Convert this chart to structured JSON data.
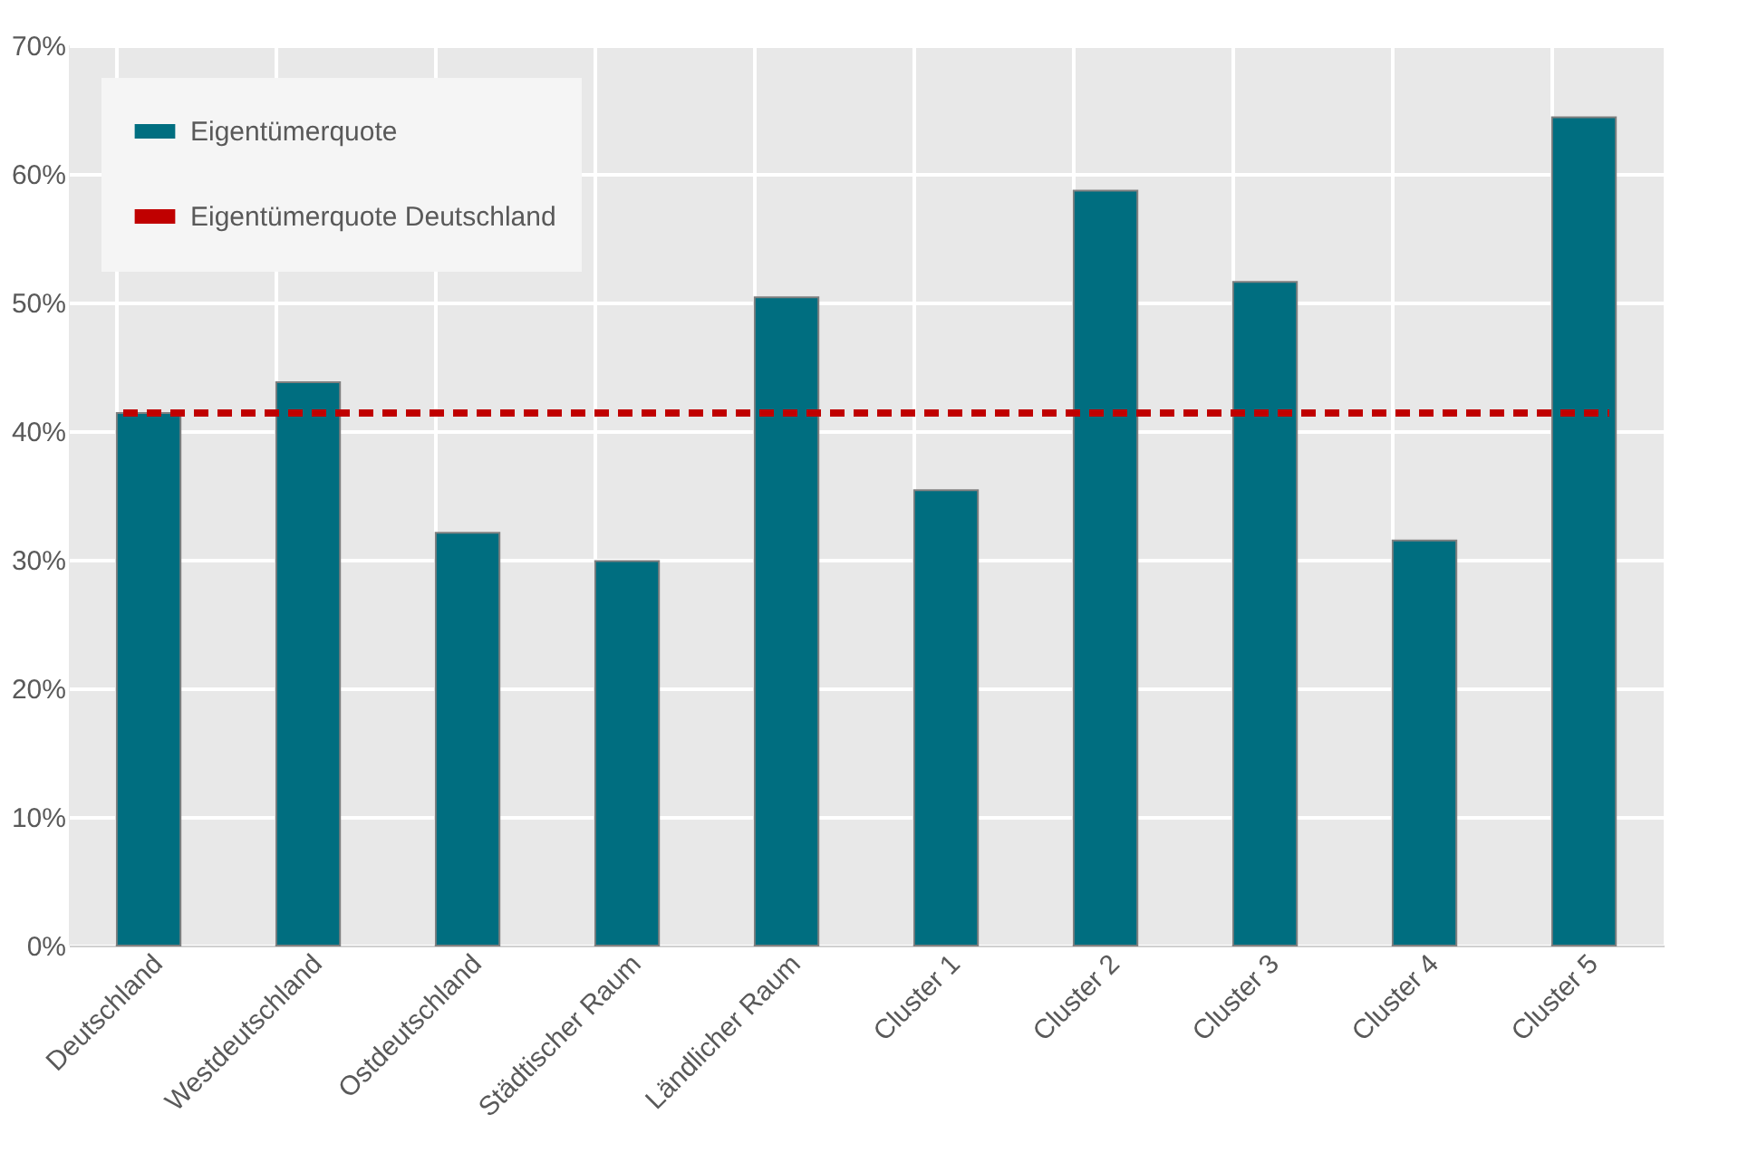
{
  "chart_data": {
    "type": "bar",
    "categories": [
      "Deutschland",
      "Westdeutschland",
      "Ostdeutschland",
      "Städtischer Raum",
      "Ländlicher Raum",
      "Cluster 1",
      "Cluster 2",
      "Cluster 3",
      "Cluster 4",
      "Cluster 5"
    ],
    "series": [
      {
        "name": "Eigentümerquote",
        "color": "#006e80",
        "values": [
          41.4,
          43.8,
          32.1,
          29.9,
          50.4,
          35.4,
          58.7,
          51.6,
          31.5,
          64.4
        ]
      }
    ],
    "ref_lines": [
      {
        "axis": "y",
        "value": 41.4,
        "label": "Eigentümerquote Deutschland",
        "color": "#c00000",
        "line_style": "dashed"
      }
    ],
    "ylim": [
      0,
      70
    ],
    "yticks": [
      {
        "value": 0,
        "label": "0%"
      },
      {
        "value": 10,
        "label": "10%"
      },
      {
        "value": 20,
        "label": "20%"
      },
      {
        "value": 30,
        "label": "30%"
      },
      {
        "value": 40,
        "label": "40%"
      },
      {
        "value": 50,
        "label": "50%"
      },
      {
        "value": 60,
        "label": "60%"
      },
      {
        "value": 70,
        "label": "70%"
      }
    ],
    "grid": true,
    "legend": "top left"
  }
}
